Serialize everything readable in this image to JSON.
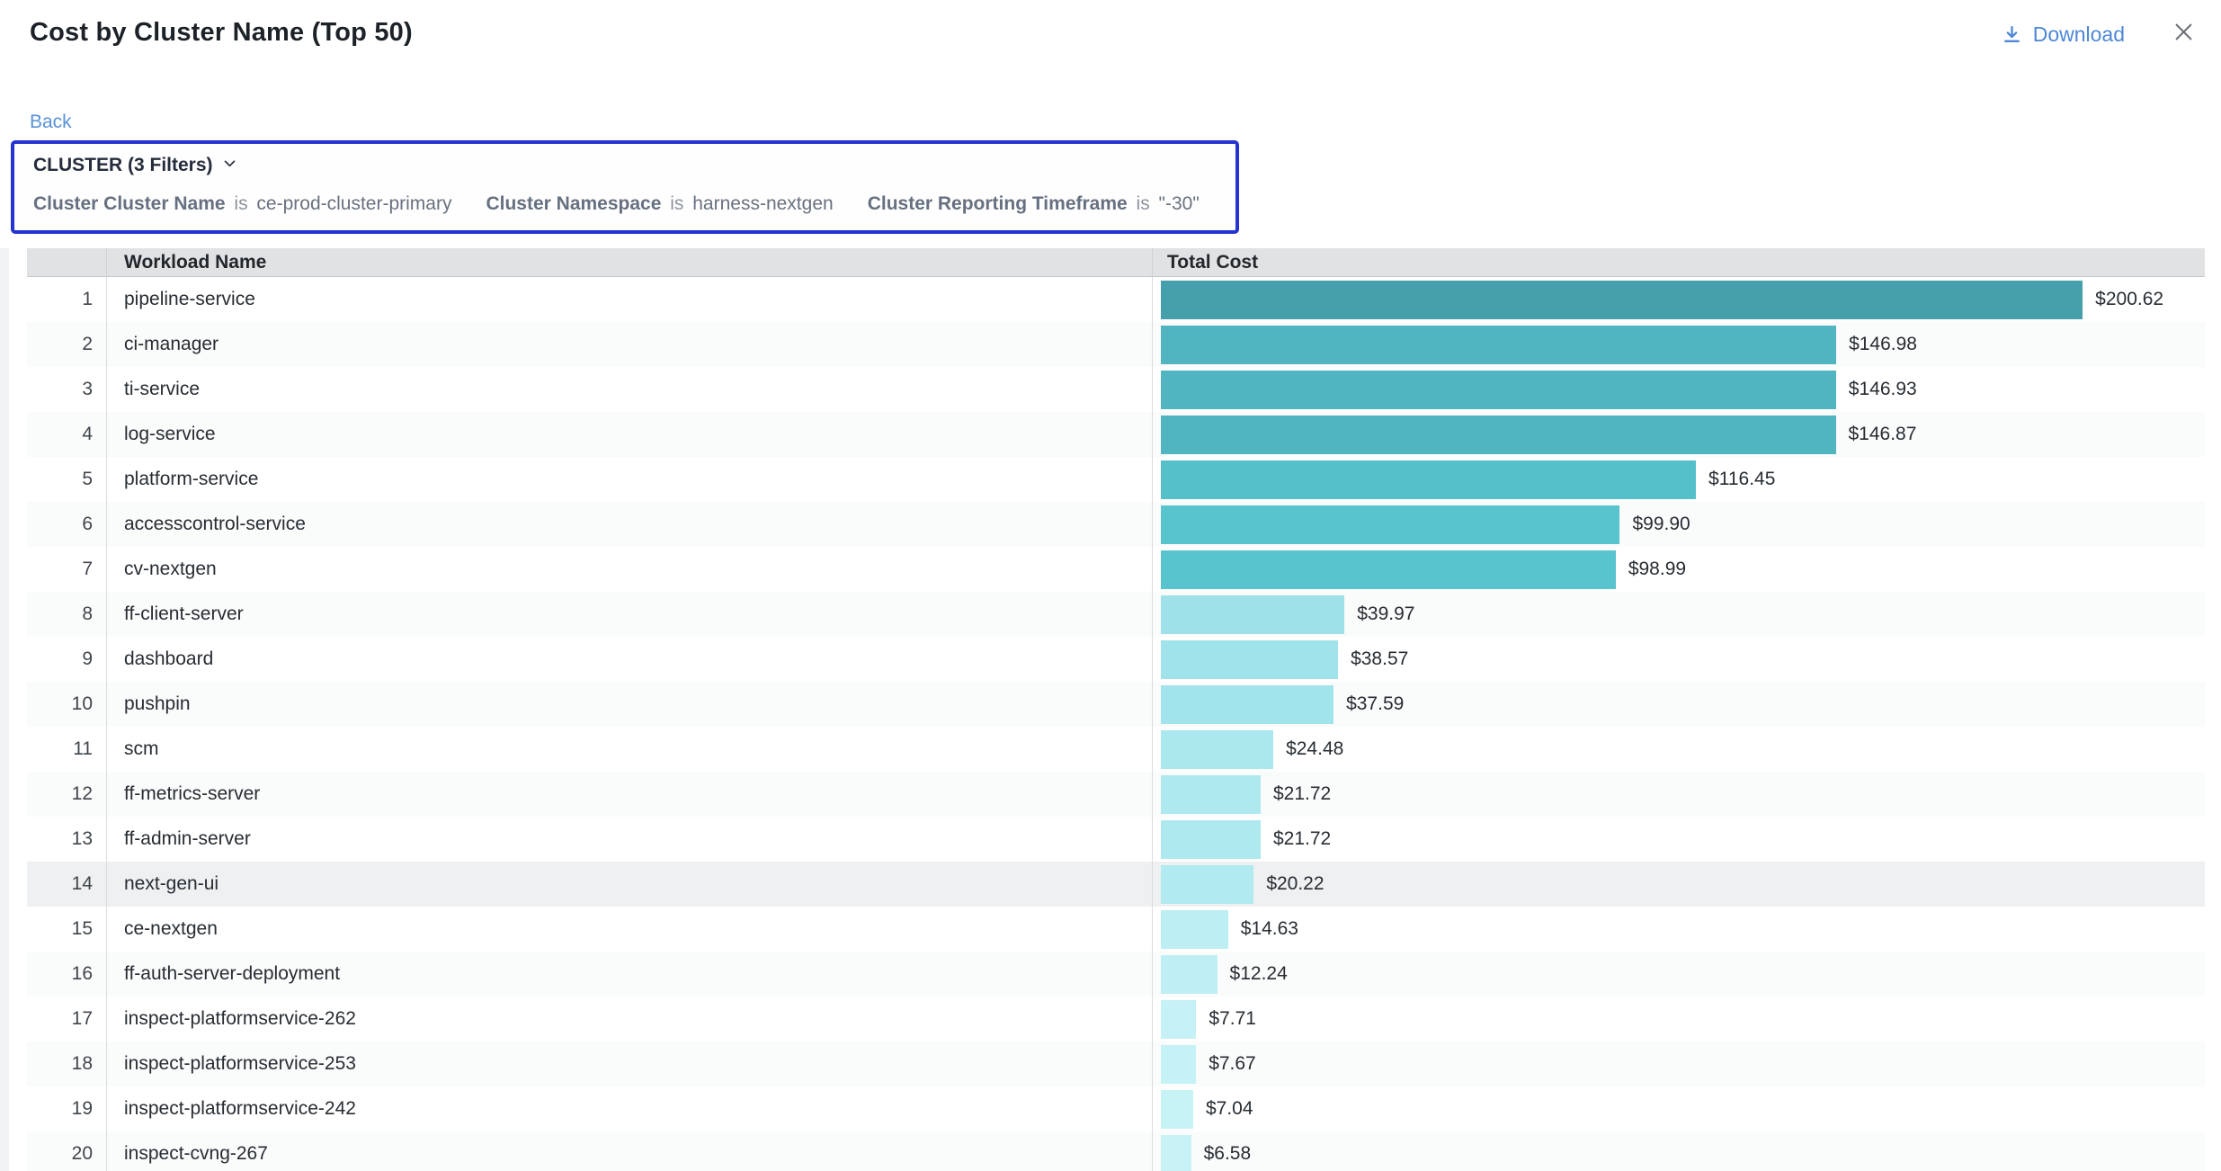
{
  "header": {
    "title": "Cost by Cluster Name (Top 50)",
    "download_label": "Download"
  },
  "nav": {
    "back_label": "Back"
  },
  "filter_panel": {
    "title": "CLUSTER (3 Filters)",
    "filters": [
      {
        "field": "Cluster Cluster Name",
        "operator": "is",
        "value": "ce-prod-cluster-primary"
      },
      {
        "field": "Cluster Namespace",
        "operator": "is",
        "value": "harness-nextgen"
      },
      {
        "field": "Cluster Reporting Timeframe",
        "operator": "is",
        "value": "\"-30\""
      }
    ]
  },
  "table": {
    "columns": [
      "Workload Name",
      "Total Cost"
    ]
  },
  "chart_data": {
    "type": "bar",
    "orientation": "horizontal",
    "title": "Cost by Cluster Name (Top 50)",
    "xlabel": "Total Cost",
    "ylabel": "Workload Name",
    "max_value": 200.62,
    "bar_max_pct": 88.3,
    "highlighted_row_index": 13,
    "ranks": [
      1,
      2,
      3,
      4,
      5,
      6,
      7,
      8,
      9,
      10,
      11,
      12,
      13,
      14,
      15,
      16,
      17,
      18,
      19,
      20
    ],
    "categories": [
      "pipeline-service",
      "ci-manager",
      "ti-service",
      "log-service",
      "platform-service",
      "accesscontrol-service",
      "cv-nextgen",
      "ff-client-server",
      "dashboard",
      "pushpin",
      "scm",
      "ff-metrics-server",
      "ff-admin-server",
      "next-gen-ui",
      "ce-nextgen",
      "ff-auth-server-deployment",
      "inspect-platformservice-262",
      "inspect-platformservice-253",
      "inspect-platformservice-242",
      "inspect-cvng-267"
    ],
    "values": [
      200.62,
      146.98,
      146.93,
      146.87,
      116.45,
      99.9,
      98.99,
      39.97,
      38.57,
      37.59,
      24.48,
      21.72,
      21.72,
      20.22,
      14.63,
      12.24,
      7.71,
      7.67,
      7.04,
      6.58
    ],
    "value_labels": [
      "$200.62",
      "$146.98",
      "$146.93",
      "$146.87",
      "$116.45",
      "$99.90",
      "$98.99",
      "$39.97",
      "$38.57",
      "$37.59",
      "$24.48",
      "$21.72",
      "$21.72",
      "$20.22",
      "$14.63",
      "$12.24",
      "$7.71",
      "$7.67",
      "$7.04",
      "$6.58"
    ],
    "bar_colors": [
      "#46A0AB",
      "#50B5C1",
      "#50B5C1",
      "#50B5C1",
      "#55BFCA",
      "#58C4CE",
      "#58C4CE",
      "#9FE1E9",
      "#A1E3EA",
      "#A2E4EB",
      "#ABE8EE",
      "#AFE9F0",
      "#AFE9F0",
      "#B1EAF0",
      "#BCEEF3",
      "#BFEFF4",
      "#C6F1F6",
      "#C6F1F6",
      "#C7F2F6",
      "#C8F2F6"
    ]
  },
  "colors": {
    "link_blue": "#4d87d5",
    "link_blue_light": "#5892d8",
    "filter_border": "#2433d1",
    "close_gray": "#6b6f73",
    "bar_dark": "#46A0AB",
    "bar_light": "#C8F2F6"
  }
}
